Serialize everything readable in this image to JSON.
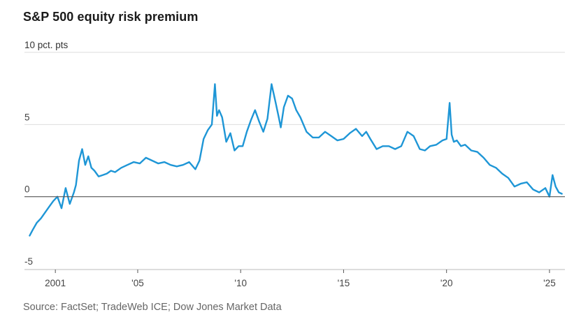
{
  "title": "S&P 500 equity risk premium",
  "source": "Source: FactSet; TradeWeb ICE; Dow Jones Market Data",
  "colors": {
    "line": "#1e96d6",
    "grid": "#dddddd",
    "zero": "#555555",
    "axis": "#bbbbbb"
  },
  "chart_data": {
    "type": "line",
    "title": "S&P 500 equity risk premium",
    "ylabel": "pct. pts",
    "xlim": [
      1999.5,
      2025.75
    ],
    "ylim": [
      -5,
      10
    ],
    "y_ticks": [
      {
        "value": 10,
        "label": "10 pct. pts"
      },
      {
        "value": 5,
        "label": "5"
      },
      {
        "value": 0,
        "label": "0"
      },
      {
        "value": -5,
        "label": "-5"
      }
    ],
    "x_ticks": [
      {
        "value": 2001,
        "label": "2001"
      },
      {
        "value": 2005,
        "label": "'05"
      },
      {
        "value": 2010,
        "label": "'10"
      },
      {
        "value": 2015,
        "label": "'15"
      },
      {
        "value": 2020,
        "label": "'20"
      },
      {
        "value": 2025,
        "label": "'25"
      }
    ],
    "series": [
      {
        "name": "S&P 500 equity risk premium",
        "x": [
          1999.75,
          1999.9,
          2000.1,
          2000.3,
          2000.5,
          2000.7,
          2000.9,
          2001.1,
          2001.3,
          2001.5,
          2001.7,
          2001.9,
          2002.0,
          2002.15,
          2002.3,
          2002.45,
          2002.6,
          2002.75,
          2002.9,
          2003.1,
          2003.3,
          2003.5,
          2003.7,
          2003.9,
          2004.2,
          2004.5,
          2004.8,
          2005.1,
          2005.4,
          2005.7,
          2006.0,
          2006.3,
          2006.6,
          2006.9,
          2007.2,
          2007.5,
          2007.8,
          2008.0,
          2008.2,
          2008.4,
          2008.6,
          2008.75,
          2008.85,
          2008.95,
          2009.1,
          2009.3,
          2009.5,
          2009.7,
          2009.9,
          2010.1,
          2010.3,
          2010.5,
          2010.7,
          2010.9,
          2011.1,
          2011.3,
          2011.5,
          2011.7,
          2011.85,
          2011.95,
          2012.1,
          2012.3,
          2012.5,
          2012.7,
          2012.9,
          2013.2,
          2013.5,
          2013.8,
          2014.1,
          2014.4,
          2014.7,
          2015.0,
          2015.3,
          2015.6,
          2015.9,
          2016.1,
          2016.3,
          2016.6,
          2016.9,
          2017.2,
          2017.5,
          2017.8,
          2018.1,
          2018.4,
          2018.7,
          2018.95,
          2019.2,
          2019.5,
          2019.8,
          2020.0,
          2020.15,
          2020.25,
          2020.35,
          2020.5,
          2020.7,
          2020.9,
          2021.2,
          2021.5,
          2021.8,
          2022.1,
          2022.4,
          2022.7,
          2023.0,
          2023.3,
          2023.6,
          2023.9,
          2024.2,
          2024.5,
          2024.8,
          2025.0,
          2025.15,
          2025.3,
          2025.45,
          2025.6
        ],
        "values": [
          -2.7,
          -2.3,
          -1.8,
          -1.5,
          -1.1,
          -0.7,
          -0.3,
          0.0,
          -0.8,
          0.6,
          -0.5,
          0.3,
          0.8,
          2.5,
          3.3,
          2.2,
          2.8,
          2.0,
          1.8,
          1.4,
          1.5,
          1.6,
          1.8,
          1.7,
          2.0,
          2.2,
          2.4,
          2.3,
          2.7,
          2.5,
          2.3,
          2.4,
          2.2,
          2.1,
          2.2,
          2.4,
          1.9,
          2.5,
          4.0,
          4.6,
          5.0,
          7.8,
          5.6,
          6.0,
          5.5,
          3.8,
          4.4,
          3.2,
          3.5,
          3.5,
          4.5,
          5.3,
          6.0,
          5.2,
          4.5,
          5.4,
          7.8,
          6.5,
          5.5,
          4.8,
          6.2,
          7.0,
          6.8,
          6.0,
          5.5,
          4.5,
          4.1,
          4.1,
          4.5,
          4.2,
          3.9,
          4.0,
          4.4,
          4.7,
          4.2,
          4.5,
          4.0,
          3.3,
          3.5,
          3.5,
          3.3,
          3.5,
          4.5,
          4.2,
          3.3,
          3.2,
          3.5,
          3.6,
          3.9,
          4.0,
          6.5,
          4.3,
          3.8,
          3.9,
          3.5,
          3.6,
          3.2,
          3.1,
          2.7,
          2.2,
          2.0,
          1.6,
          1.3,
          0.7,
          0.9,
          1.0,
          0.5,
          0.3,
          0.6,
          0.0,
          1.5,
          0.7,
          0.3,
          0.2
        ]
      }
    ]
  }
}
